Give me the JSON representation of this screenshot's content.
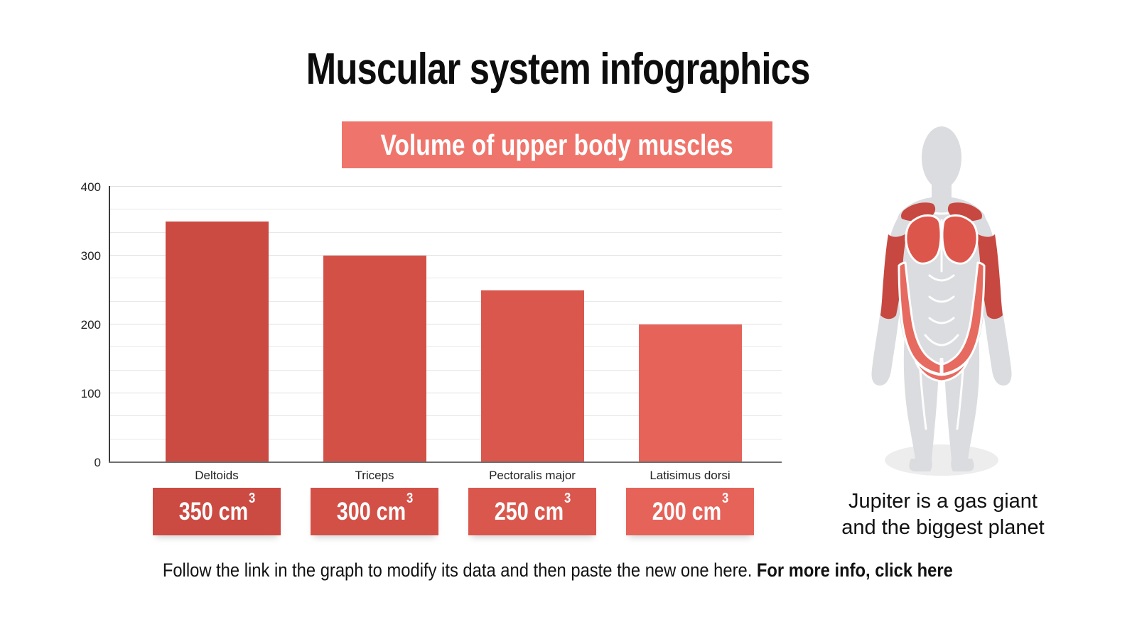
{
  "page": {
    "title": "Muscular system infographics"
  },
  "chart_banner": {
    "label": "Volume of upper body muscles",
    "bg_color": "#ef756c",
    "text_color": "#ffffff"
  },
  "chart_data": {
    "type": "bar",
    "title": "Volume of upper body muscles",
    "categories": [
      "Deltoids",
      "Triceps",
      "Pectoralis major",
      "Latisimus dorsi"
    ],
    "values": [
      350,
      300,
      250,
      200
    ],
    "value_labels": [
      "350 cm³",
      "300 cm³",
      "250 cm³",
      "200 cm³"
    ],
    "bar_colors": [
      "#cb4a42",
      "#d35047",
      "#da574e",
      "#e6635a"
    ],
    "xlabel": "",
    "ylabel": "",
    "ylim": [
      0,
      400
    ],
    "yticks": [
      0,
      100,
      200,
      300,
      400
    ],
    "minor_grid_divisions_per_major": 3,
    "grid": "horizontal",
    "legend_position": "none"
  },
  "badges": [
    {
      "value": "350 cm",
      "sup": "3",
      "bg": "#cb4a42"
    },
    {
      "value": "300 cm",
      "sup": "3",
      "bg": "#d35047"
    },
    {
      "value": "250 cm",
      "sup": "3",
      "bg": "#da574e"
    },
    {
      "value": "200 cm",
      "sup": "3",
      "bg": "#e6635a"
    }
  ],
  "figure_caption": {
    "line1": "Jupiter is a gas giant",
    "line2": "and the biggest planet"
  },
  "footer": {
    "text": "Follow the link in the graph to modify its data and then paste the new one here. ",
    "link_text": "For more info, click here"
  },
  "illustration": {
    "name": "muscular-body-front-view",
    "body_color": "#dbdcdf",
    "muscle_dark": "#c74840",
    "muscle_mid": "#dc564c",
    "muscle_light": "#e66a5f",
    "shadow_color": "#ededed"
  }
}
